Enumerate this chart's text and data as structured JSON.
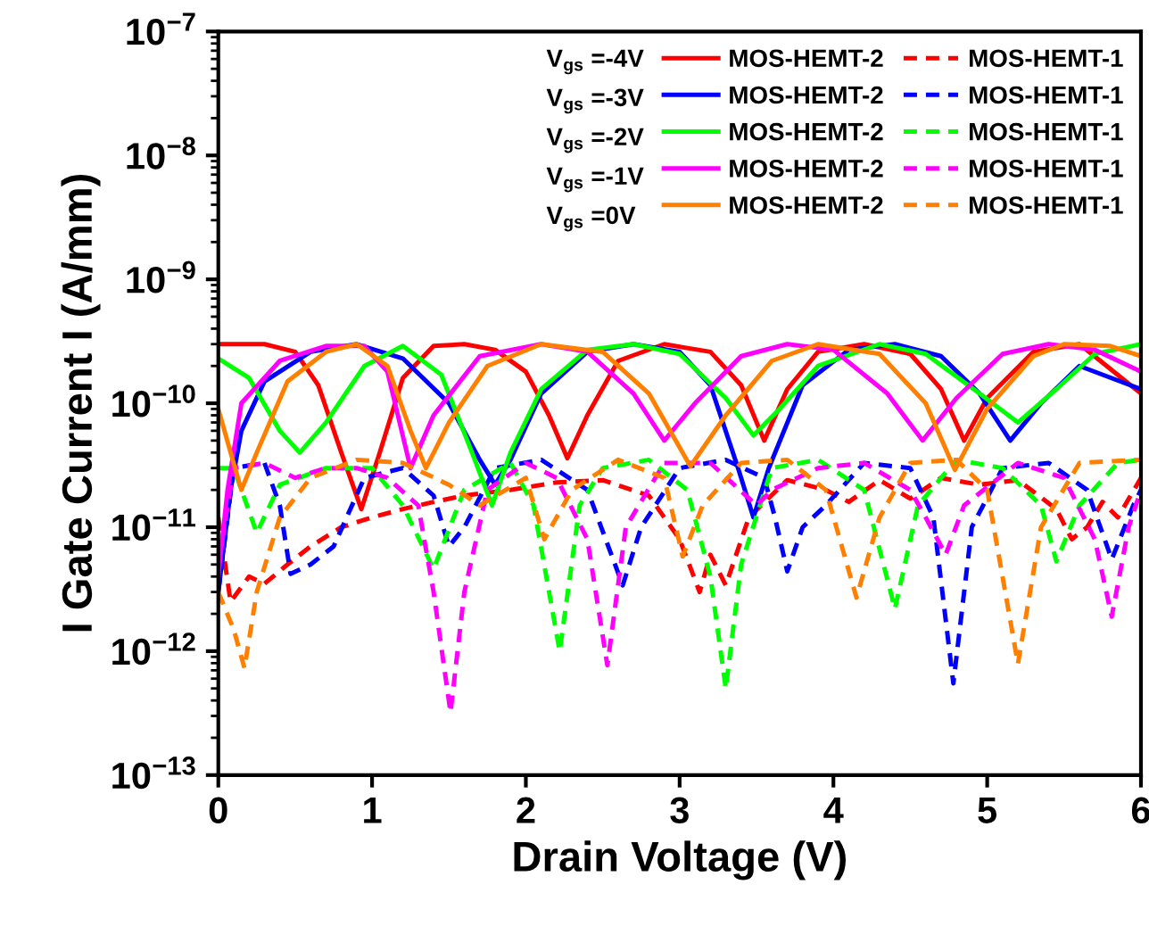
{
  "chart_data": {
    "type": "line",
    "xlabel": "Drain Voltage (V)",
    "ylabel": "I Gate Current I (A/mm)",
    "log": "y",
    "xlim": [
      0,
      6
    ],
    "xticks": [
      0,
      1,
      2,
      3,
      4,
      5,
      6
    ],
    "ylim": [
      1e-13,
      1e-07
    ],
    "yticks": [
      {
        "value": 1e-13,
        "label": "10$^{−13}$"
      },
      {
        "value": 1e-12,
        "label": "10$^{−12}$"
      },
      {
        "value": 1e-11,
        "label": "10$^{−11}$"
      },
      {
        "value": 1e-10,
        "label": "10$^{−10}$"
      },
      {
        "value": 1e-09,
        "label": "10$^{−9}$"
      },
      {
        "value": 1e-08,
        "label": "10$^{−8}$"
      },
      {
        "value": 1e-07,
        "label": "10$^{−7}$"
      }
    ],
    "grid": false,
    "legend": "top right",
    "marker": "none",
    "annotations": [
      "V$_{gs}$ =-4V",
      "V$_{gs}$ =-3V",
      "V$_{gs}$ =-2V",
      "V$_{gs}$ =-1V",
      "V$_{gs}$ =0V"
    ],
    "series": [
      {
        "name": "MOS-HEMT-2",
        "color": "#ff0000",
        "line_style": "solid",
        "x": [
          0,
          0.3,
          0.5,
          0.65,
          0.8,
          0.93,
          1.05,
          1.2,
          1.4,
          1.6,
          1.8,
          2.0,
          2.15,
          2.27,
          2.4,
          2.6,
          2.9,
          3.2,
          3.4,
          3.55,
          3.7,
          3.9,
          4.2,
          4.5,
          4.7,
          4.85,
          5.0,
          5.3,
          5.6,
          6.0
        ],
        "values": [
          3e-10,
          3e-10,
          2.6e-10,
          1.4e-10,
          4e-11,
          1.4e-11,
          4e-11,
          1.6e-10,
          2.9e-10,
          3e-10,
          2.7e-10,
          1.8e-10,
          8e-11,
          3.6e-11,
          8e-11,
          2.2e-10,
          3e-10,
          2.6e-10,
          1.4e-10,
          5e-11,
          1.3e-10,
          2.6e-10,
          3e-10,
          2.5e-10,
          1.3e-10,
          5e-11,
          1.1e-10,
          2.6e-10,
          3e-10,
          1.2e-10
        ]
      },
      {
        "name": "MOS-HEMT-1",
        "color": "#ff0000",
        "line_style": "dashed",
        "x": [
          0,
          0.08,
          0.2,
          0.3,
          0.45,
          0.6,
          0.8,
          1.0,
          1.2,
          1.4,
          1.6,
          1.9,
          2.2,
          2.5,
          2.8,
          3.0,
          3.13,
          3.2,
          3.3,
          3.45,
          3.7,
          3.95,
          4.1,
          4.3,
          4.5,
          4.7,
          4.95,
          5.2,
          5.45,
          5.55,
          5.65,
          5.75,
          5.85,
          6.0
        ],
        "values": [
          1.2e-11,
          2.5e-12,
          4e-12,
          3.5e-12,
          5e-12,
          7e-12,
          1e-11,
          1.2e-11,
          1.4e-11,
          1.6e-11,
          1.8e-11,
          2e-11,
          2.3e-11,
          2.4e-11,
          1.8e-11,
          8e-12,
          3e-12,
          6e-12,
          3.4e-12,
          1.2e-11,
          2.4e-11,
          2e-11,
          1.6e-11,
          2.4e-11,
          1.7e-11,
          2.5e-11,
          2.2e-11,
          2.4e-11,
          1.4e-11,
          8e-12,
          1e-11,
          1.6e-11,
          1.2e-11,
          2.5e-11
        ]
      },
      {
        "name": "MOS-HEMT-2",
        "color": "#0000ff",
        "line_style": "solid",
        "x": [
          0,
          0.08,
          0.15,
          0.3,
          0.6,
          0.9,
          1.2,
          1.5,
          1.7,
          1.8,
          1.9,
          2.1,
          2.4,
          2.7,
          3.0,
          3.2,
          3.38,
          3.48,
          3.58,
          3.8,
          4.1,
          4.4,
          4.7,
          4.95,
          5.15,
          5.35,
          5.6,
          6.0
        ],
        "values": [
          3e-12,
          2e-11,
          6e-11,
          1.5e-10,
          2.6e-10,
          3e-10,
          2.3e-10,
          1e-10,
          3.5e-11,
          2.2e-11,
          3.5e-11,
          1.2e-10,
          2.6e-10,
          3e-10,
          2.6e-10,
          1.4e-10,
          3e-11,
          1.2e-11,
          3e-11,
          1.4e-10,
          2.7e-10,
          3e-10,
          2.4e-10,
          1.2e-10,
          5e-11,
          1e-10,
          2e-10,
          1.3e-10
        ]
      },
      {
        "name": "MOS-HEMT-1",
        "color": "#0000ff",
        "line_style": "dashed",
        "x": [
          0,
          0.1,
          0.3,
          0.4,
          0.47,
          0.6,
          0.75,
          0.95,
          1.2,
          1.4,
          1.5,
          1.6,
          1.8,
          2.1,
          2.4,
          2.63,
          2.75,
          3.0,
          3.3,
          3.55,
          3.62,
          3.7,
          3.8,
          3.95,
          4.2,
          4.5,
          4.65,
          4.78,
          4.9,
          5.1,
          5.4,
          5.65,
          5.81,
          5.95,
          6.0
        ],
        "values": [
          3e-12,
          3e-11,
          3.3e-11,
          1.5e-11,
          4.2e-12,
          5e-12,
          7e-12,
          2.5e-11,
          3e-11,
          1.8e-11,
          7e-12,
          1e-11,
          3e-11,
          3.5e-11,
          2e-11,
          3.4e-12,
          1e-11,
          3e-11,
          3.5e-11,
          2.5e-11,
          1.2e-11,
          4.4e-12,
          1e-11,
          1.5e-11,
          3.3e-11,
          3e-11,
          1.2e-11,
          5.5e-13,
          1e-11,
          3e-11,
          3.3e-11,
          2e-11,
          5.5e-12,
          1.5e-11,
          2e-11
        ]
      },
      {
        "name": "MOS-HEMT-2",
        "color": "#00ff00",
        "line_style": "solid",
        "x": [
          0,
          0.2,
          0.4,
          0.53,
          0.7,
          0.95,
          1.2,
          1.45,
          1.65,
          1.78,
          1.9,
          2.1,
          2.4,
          2.7,
          3.0,
          3.3,
          3.48,
          3.65,
          3.9,
          4.3,
          4.6,
          4.95,
          5.2,
          5.45,
          5.7,
          6.0
        ],
        "values": [
          2.3e-10,
          1.6e-10,
          6e-11,
          4e-11,
          7e-11,
          2e-10,
          2.9e-10,
          1.7e-10,
          4e-11,
          1.5e-11,
          4e-11,
          1.3e-10,
          2.7e-10,
          3e-10,
          2.5e-10,
          1.1e-10,
          5.5e-11,
          9e-11,
          2e-10,
          3e-10,
          2.5e-10,
          1.2e-10,
          7e-11,
          1.3e-10,
          2.5e-10,
          3e-10
        ]
      },
      {
        "name": "MOS-HEMT-1",
        "color": "#00ff00",
        "line_style": "dashed",
        "x": [
          0,
          0.1,
          0.25,
          0.4,
          0.7,
          1.0,
          1.2,
          1.4,
          1.6,
          1.9,
          2.05,
          2.22,
          2.35,
          2.5,
          2.8,
          3.05,
          3.2,
          3.3,
          3.4,
          3.6,
          3.9,
          4.2,
          4.4,
          4.55,
          4.8,
          5.1,
          5.35,
          5.45,
          5.6,
          5.85,
          6.0
        ],
        "values": [
          3e-11,
          3e-11,
          9e-12,
          2.2e-11,
          3e-11,
          3e-11,
          1.5e-11,
          4.6e-12,
          2e-11,
          3.3e-11,
          1.5e-11,
          1e-12,
          1.5e-11,
          3e-11,
          3.5e-11,
          2e-11,
          4e-12,
          5e-13,
          5e-12,
          3e-11,
          3.5e-11,
          2e-11,
          2.2e-12,
          1.5e-11,
          3.5e-11,
          3e-11,
          1.5e-11,
          5.3e-12,
          1.5e-11,
          3.3e-11,
          3.5e-11
        ]
      },
      {
        "name": "MOS-HEMT-2",
        "color": "#ff00ff",
        "line_style": "solid",
        "x": [
          0,
          0.06,
          0.15,
          0.4,
          0.7,
          0.95,
          1.1,
          1.25,
          1.4,
          1.7,
          2.1,
          2.4,
          2.7,
          2.9,
          3.1,
          3.4,
          3.7,
          4.0,
          4.35,
          4.58,
          4.8,
          5.1,
          5.4,
          5.7,
          6.0
        ],
        "values": [
          4e-12,
          2e-11,
          1e-10,
          2.2e-10,
          2.9e-10,
          2.9e-10,
          1.8e-10,
          3e-11,
          8e-11,
          2.4e-10,
          3e-10,
          2.6e-10,
          1.2e-10,
          5e-11,
          1e-10,
          2.4e-10,
          3e-10,
          2.7e-10,
          1.2e-10,
          5e-11,
          1.1e-10,
          2.5e-10,
          3e-10,
          2.7e-10,
          1.8e-10
        ]
      },
      {
        "name": "MOS-HEMT-1",
        "color": "#ff00ff",
        "line_style": "dashed",
        "x": [
          0,
          0.1,
          0.3,
          0.5,
          0.7,
          0.9,
          1.1,
          1.3,
          1.4,
          1.51,
          1.6,
          1.75,
          2.0,
          2.2,
          2.4,
          2.53,
          2.65,
          2.9,
          3.2,
          3.5,
          3.6,
          3.9,
          4.2,
          4.5,
          4.6,
          4.73,
          4.85,
          5.2,
          5.5,
          5.7,
          5.81,
          5.92,
          6.0
        ],
        "values": [
          5e-12,
          3e-11,
          3.3e-11,
          2.5e-11,
          3e-11,
          3e-11,
          2.5e-11,
          1.5e-11,
          3e-12,
          3.2e-13,
          3e-12,
          2e-11,
          3.3e-11,
          2.5e-11,
          8e-12,
          7.7e-13,
          1e-11,
          3.3e-11,
          3.3e-11,
          1.5e-11,
          2e-11,
          3e-11,
          3.3e-11,
          2e-11,
          1.2e-11,
          6e-12,
          1.5e-11,
          3.3e-11,
          2.5e-11,
          8e-12,
          1.9e-12,
          1e-11,
          2e-11
        ]
      },
      {
        "name": "MOS-HEMT-2",
        "color": "#ff8000",
        "line_style": "solid",
        "x": [
          0,
          0.08,
          0.15,
          0.25,
          0.45,
          0.7,
          0.9,
          1.1,
          1.25,
          1.35,
          1.5,
          1.75,
          2.1,
          2.5,
          2.8,
          3.07,
          3.3,
          3.6,
          3.9,
          4.3,
          4.6,
          4.79,
          5.0,
          5.3,
          5.5,
          5.8,
          6.0
        ],
        "values": [
          9e-11,
          4e-11,
          2e-11,
          4e-11,
          1.5e-10,
          2.6e-10,
          3e-10,
          2e-10,
          6e-11,
          3e-11,
          7e-11,
          2e-10,
          3e-10,
          2.6e-10,
          1.2e-10,
          3.1e-11,
          8e-11,
          2.2e-10,
          3e-10,
          2.5e-10,
          1e-10,
          2.9e-11,
          9e-11,
          2.4e-10,
          3e-10,
          2.9e-10,
          2.4e-10
        ]
      },
      {
        "name": "MOS-HEMT-1",
        "color": "#ff8000",
        "line_style": "dashed",
        "x": [
          0,
          0.1,
          0.17,
          0.25,
          0.4,
          0.6,
          0.9,
          1.2,
          1.5,
          1.7,
          2.0,
          2.12,
          2.3,
          2.6,
          2.9,
          3.02,
          3.15,
          3.4,
          3.7,
          3.95,
          4.15,
          4.3,
          4.5,
          4.8,
          5.0,
          5.2,
          5.35,
          5.6,
          6.0
        ],
        "values": [
          3e-12,
          1.5e-12,
          7.3e-13,
          3e-12,
          1.2e-11,
          2.5e-11,
          3.5e-11,
          3.3e-11,
          2.2e-11,
          1.5e-11,
          2.5e-11,
          8e-12,
          2e-11,
          3.5e-11,
          2.5e-11,
          5.8e-12,
          1.5e-11,
          3.3e-11,
          3.5e-11,
          2e-11,
          2.7e-12,
          1.2e-11,
          3.3e-11,
          3.5e-11,
          2e-11,
          7.9e-13,
          1e-11,
          3.3e-11,
          3.5e-11
        ]
      }
    ]
  }
}
